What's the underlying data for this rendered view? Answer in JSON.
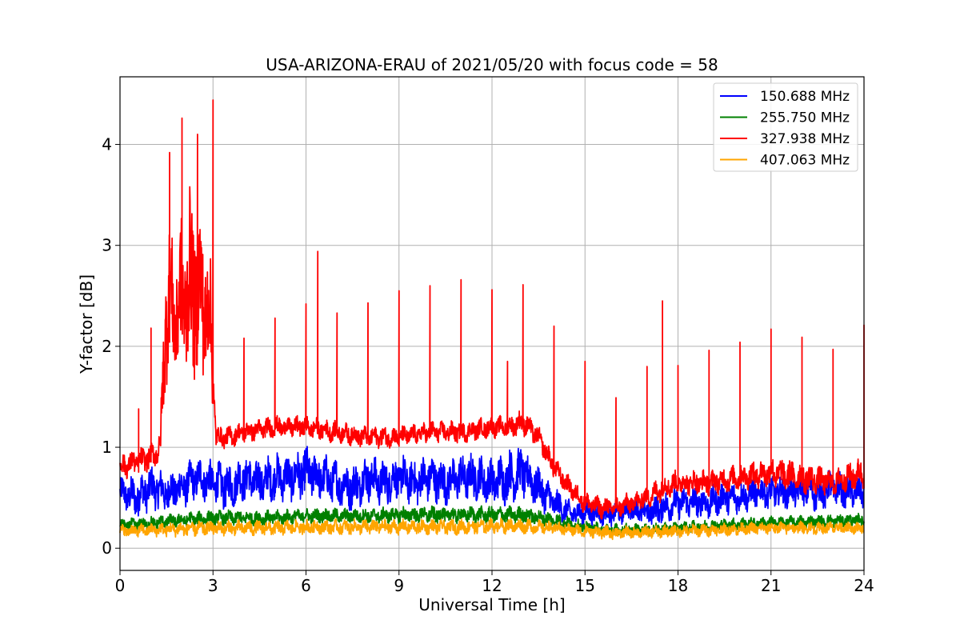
{
  "chart_data": {
    "type": "line",
    "title": "USA-ARIZONA-ERAU of 2021/05/20 with focus code = 58",
    "xlabel": "Universal Time [h]",
    "ylabel": "Y-factor [dB]",
    "xlim": [
      0,
      24
    ],
    "ylim": [
      -0.22,
      4.67
    ],
    "x_ticks": [
      0,
      3,
      6,
      9,
      12,
      15,
      18,
      21,
      24
    ],
    "x_tick_labels": [
      "0",
      "3",
      "6",
      "9",
      "12",
      "15",
      "18",
      "21",
      "24"
    ],
    "y_ticks": [
      0,
      1,
      2,
      3,
      4
    ],
    "y_tick_labels": [
      "0",
      "1",
      "2",
      "3",
      "4"
    ],
    "grid": true,
    "legend_position": "top-right",
    "series": [
      {
        "name": "150.688 MHz",
        "color": "#0000ff",
        "x": [
          0,
          0.5,
          1,
          1.5,
          2,
          2.5,
          3,
          3.5,
          4,
          4.5,
          5,
          5.5,
          6,
          6.5,
          7,
          7.5,
          8,
          8.5,
          9,
          9.5,
          10,
          10.5,
          11,
          11.5,
          12,
          12.5,
          13,
          13.5,
          14,
          14.5,
          15,
          15.5,
          16,
          16.5,
          17,
          17.5,
          18,
          18.5,
          19,
          19.5,
          20,
          20.5,
          21,
          21.5,
          22,
          22.5,
          23,
          23.5,
          24
        ],
        "values": [
          0.55,
          0.5,
          0.6,
          0.55,
          0.6,
          0.7,
          0.65,
          0.6,
          0.7,
          0.65,
          0.7,
          0.7,
          0.75,
          0.7,
          0.65,
          0.6,
          0.7,
          0.65,
          0.7,
          0.65,
          0.7,
          0.65,
          0.7,
          0.7,
          0.65,
          0.7,
          0.75,
          0.6,
          0.45,
          0.35,
          0.35,
          0.35,
          0.35,
          0.4,
          0.35,
          0.4,
          0.45,
          0.45,
          0.45,
          0.5,
          0.5,
          0.55,
          0.55,
          0.55,
          0.6,
          0.55,
          0.6,
          0.55,
          0.55
        ],
        "amplitude": [
          0.15,
          0.2,
          0.2,
          0.2,
          0.2,
          0.2,
          0.2,
          0.22,
          0.22,
          0.22,
          0.22,
          0.22,
          0.25,
          0.22,
          0.22,
          0.22,
          0.22,
          0.22,
          0.22,
          0.22,
          0.22,
          0.22,
          0.22,
          0.22,
          0.22,
          0.25,
          0.25,
          0.2,
          0.15,
          0.12,
          0.12,
          0.12,
          0.12,
          0.12,
          0.12,
          0.15,
          0.15,
          0.15,
          0.15,
          0.15,
          0.15,
          0.15,
          0.15,
          0.15,
          0.18,
          0.18,
          0.18,
          0.15,
          0.15
        ]
      },
      {
        "name": "255.750 MHz",
        "color": "#008000",
        "x": [
          0,
          1,
          2,
          3,
          4,
          5,
          6,
          7,
          8,
          9,
          10,
          11,
          12,
          13,
          14,
          15,
          16,
          17,
          18,
          19,
          20,
          21,
          22,
          23,
          24
        ],
        "values": [
          0.22,
          0.25,
          0.28,
          0.3,
          0.3,
          0.3,
          0.32,
          0.32,
          0.32,
          0.33,
          0.33,
          0.33,
          0.33,
          0.33,
          0.28,
          0.2,
          0.18,
          0.18,
          0.2,
          0.22,
          0.24,
          0.25,
          0.26,
          0.27,
          0.28
        ],
        "amplitude": [
          0.06,
          0.06,
          0.07,
          0.07,
          0.07,
          0.07,
          0.07,
          0.07,
          0.07,
          0.08,
          0.08,
          0.08,
          0.08,
          0.08,
          0.07,
          0.06,
          0.06,
          0.06,
          0.06,
          0.06,
          0.06,
          0.06,
          0.06,
          0.06,
          0.06
        ]
      },
      {
        "name": "327.938 MHz",
        "color": "#ff0000",
        "x": [
          0,
          0.5,
          1,
          1.3,
          1.5,
          1.8,
          2,
          2.3,
          2.6,
          2.9,
          3.1,
          3.5,
          4,
          5,
          6,
          7,
          8,
          9,
          10,
          11,
          12,
          12.5,
          13,
          13.5,
          14,
          14.5,
          15,
          15.5,
          16,
          16.5,
          17,
          17.5,
          18,
          19,
          20,
          21,
          22,
          23,
          24
        ],
        "values": [
          0.8,
          0.85,
          0.9,
          1.0,
          2.5,
          2.3,
          2.5,
          2.6,
          2.5,
          2.3,
          1.1,
          1.1,
          1.15,
          1.2,
          1.2,
          1.15,
          1.1,
          1.1,
          1.15,
          1.15,
          1.2,
          1.2,
          1.25,
          1.1,
          0.8,
          0.6,
          0.45,
          0.4,
          0.4,
          0.45,
          0.5,
          0.6,
          0.65,
          0.65,
          0.7,
          0.75,
          0.7,
          0.65,
          0.75
        ],
        "amplitude": [
          0.12,
          0.12,
          0.12,
          0.15,
          0.8,
          0.6,
          0.8,
          0.9,
          0.8,
          0.7,
          0.1,
          0.1,
          0.1,
          0.1,
          0.1,
          0.1,
          0.1,
          0.1,
          0.1,
          0.1,
          0.1,
          0.1,
          0.12,
          0.1,
          0.1,
          0.1,
          0.1,
          0.1,
          0.1,
          0.1,
          0.1,
          0.12,
          0.12,
          0.12,
          0.12,
          0.15,
          0.15,
          0.12,
          0.15
        ],
        "spikes": [
          {
            "x": 0.6,
            "y": 1.38
          },
          {
            "x": 1.0,
            "y": 2.18
          },
          {
            "x": 1.6,
            "y": 3.92
          },
          {
            "x": 2.0,
            "y": 4.26
          },
          {
            "x": 2.5,
            "y": 4.1
          },
          {
            "x": 3.0,
            "y": 4.44
          },
          {
            "x": 4.0,
            "y": 2.08
          },
          {
            "x": 5.0,
            "y": 2.28
          },
          {
            "x": 6.0,
            "y": 2.42
          },
          {
            "x": 6.38,
            "y": 2.94
          },
          {
            "x": 7.0,
            "y": 2.33
          },
          {
            "x": 8.0,
            "y": 2.43
          },
          {
            "x": 9.0,
            "y": 2.55
          },
          {
            "x": 10.0,
            "y": 2.6
          },
          {
            "x": 11.0,
            "y": 2.66
          },
          {
            "x": 12.0,
            "y": 2.56
          },
          {
            "x": 12.5,
            "y": 1.85
          },
          {
            "x": 13.0,
            "y": 2.61
          },
          {
            "x": 14.0,
            "y": 2.2
          },
          {
            "x": 15.0,
            "y": 1.85
          },
          {
            "x": 16.0,
            "y": 1.49
          },
          {
            "x": 17.0,
            "y": 1.8
          },
          {
            "x": 17.5,
            "y": 2.45
          },
          {
            "x": 18.0,
            "y": 1.81
          },
          {
            "x": 19.0,
            "y": 1.96
          },
          {
            "x": 20.0,
            "y": 2.04
          },
          {
            "x": 21.0,
            "y": 2.17
          },
          {
            "x": 22.0,
            "y": 2.09
          },
          {
            "x": 23.0,
            "y": 1.97
          },
          {
            "x": 24.0,
            "y": 2.21
          }
        ]
      },
      {
        "name": "407.063 MHz",
        "color": "#ffa500",
        "x": [
          0,
          1,
          2,
          3,
          4,
          5,
          6,
          7,
          8,
          9,
          10,
          11,
          12,
          13,
          14,
          15,
          16,
          17,
          18,
          19,
          20,
          21,
          22,
          23,
          24
        ],
        "values": [
          0.17,
          0.18,
          0.19,
          0.2,
          0.2,
          0.2,
          0.21,
          0.21,
          0.21,
          0.21,
          0.21,
          0.21,
          0.22,
          0.22,
          0.2,
          0.17,
          0.15,
          0.16,
          0.17,
          0.18,
          0.19,
          0.2,
          0.2,
          0.2,
          0.2
        ],
        "amplitude": [
          0.06,
          0.06,
          0.07,
          0.07,
          0.07,
          0.07,
          0.07,
          0.07,
          0.07,
          0.07,
          0.07,
          0.07,
          0.07,
          0.07,
          0.06,
          0.06,
          0.06,
          0.06,
          0.06,
          0.06,
          0.06,
          0.06,
          0.06,
          0.06,
          0.06
        ]
      }
    ]
  }
}
